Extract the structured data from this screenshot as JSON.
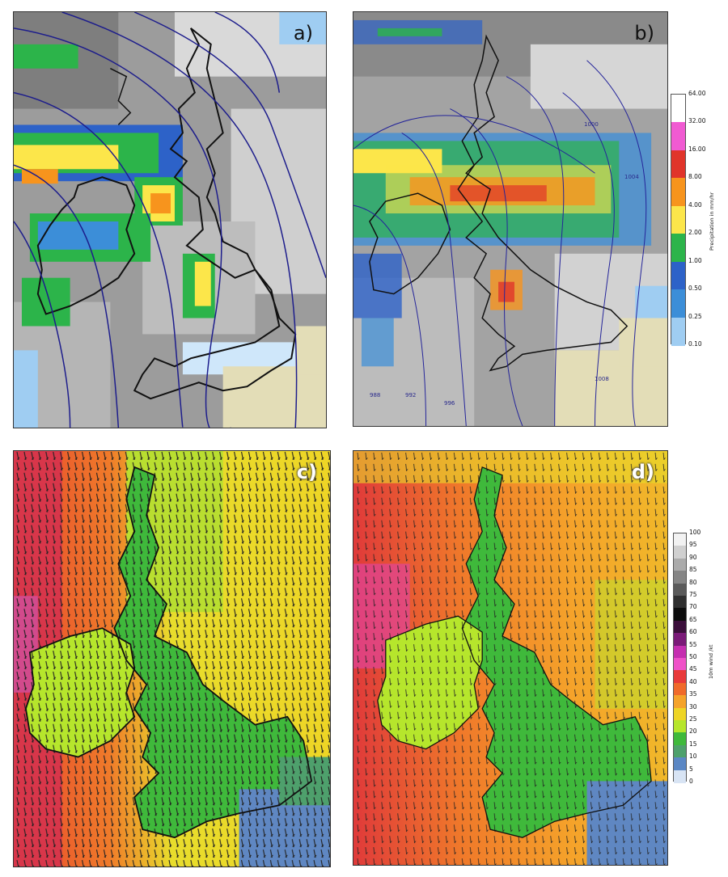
{
  "panels": {
    "a": {
      "label": "a)",
      "type": "precipitation-with-isobars"
    },
    "b": {
      "label": "b)",
      "type": "precipitation-with-isobars",
      "isobar_labels": [
        "1000",
        "1004",
        "1008",
        "996",
        "992",
        "988"
      ]
    },
    "c": {
      "label": "c)",
      "type": "10m-wind-speed-with-arrows"
    },
    "d": {
      "label": "d)",
      "type": "10m-wind-speed-with-arrows"
    }
  },
  "precip_colorbar": {
    "title": "Precipitation in mm/hr",
    "ticks": [
      "64.00",
      "32.00",
      "16.00",
      "8.00",
      "4.00",
      "2.00",
      "1.00",
      "0.50",
      "0.25",
      "0.10"
    ],
    "colors": [
      "#ffffff",
      "#f05ad2",
      "#e0342a",
      "#f7941d",
      "#fce64a",
      "#2cb44a",
      "#2d62c8",
      "#3c8ed8",
      "#9fcdf2"
    ]
  },
  "wind_colorbar": {
    "title": "10m wind /kt",
    "ticks": [
      "100",
      "95",
      "90",
      "85",
      "80",
      "75",
      "70",
      "65",
      "60",
      "55",
      "50",
      "45",
      "40",
      "35",
      "30",
      "25",
      "20",
      "15",
      "10",
      "5",
      "0"
    ],
    "colors": [
      "#f2f2f2",
      "#d0d0d0",
      "#ababab",
      "#858585",
      "#5a5a5a",
      "#2f2f2f",
      "#0c0c0c",
      "#3b0f3b",
      "#7a1a78",
      "#c52fb0",
      "#ef52c8",
      "#e83a3a",
      "#f06a2a",
      "#f5a32a",
      "#eed526",
      "#b6e62c",
      "#3fb93b",
      "#4ea06c",
      "#5b87c4",
      "#d8e4f4"
    ]
  }
}
